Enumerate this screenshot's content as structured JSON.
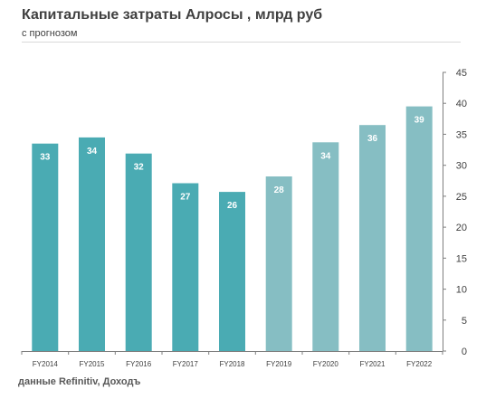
{
  "chart_data": {
    "type": "bar",
    "title": "Капитальные затраты Алросы , млрд руб",
    "subtitle": "с прогнозом",
    "categories": [
      "FY2014",
      "FY2015",
      "FY2016",
      "FY2017",
      "FY2018",
      "FY2019",
      "FY2020",
      "FY2021",
      "FY2022"
    ],
    "series": [
      {
        "values": [
          33.5,
          34.5,
          31.9,
          27.1,
          25.7,
          28.2,
          33.7,
          36.5,
          39.5
        ],
        "labels": [
          "33",
          "34",
          "32",
          "27",
          "26",
          "28",
          "34",
          "36",
          "39"
        ],
        "colors": [
          "#4aabb3",
          "#4aabb3",
          "#4aabb3",
          "#4aabb3",
          "#4aabb3",
          "#86bec3",
          "#86bec3",
          "#86bec3",
          "#86bec3"
        ]
      }
    ],
    "ylim": [
      0,
      45
    ],
    "yticks": [
      "0",
      "5",
      "10",
      "15",
      "20",
      "25",
      "30",
      "35",
      "40",
      "45"
    ],
    "y_axis_position": "right",
    "grid": false,
    "legend": "none",
    "xlabel": "",
    "ylabel": ""
  },
  "source": "данные Refinitiv, Доходъ",
  "colors": {
    "actual": "#4aabb3",
    "forecast": "#86bec3",
    "axis": "#7f7f7f",
    "label_text": "#ffffff",
    "title_text": "#404040"
  }
}
